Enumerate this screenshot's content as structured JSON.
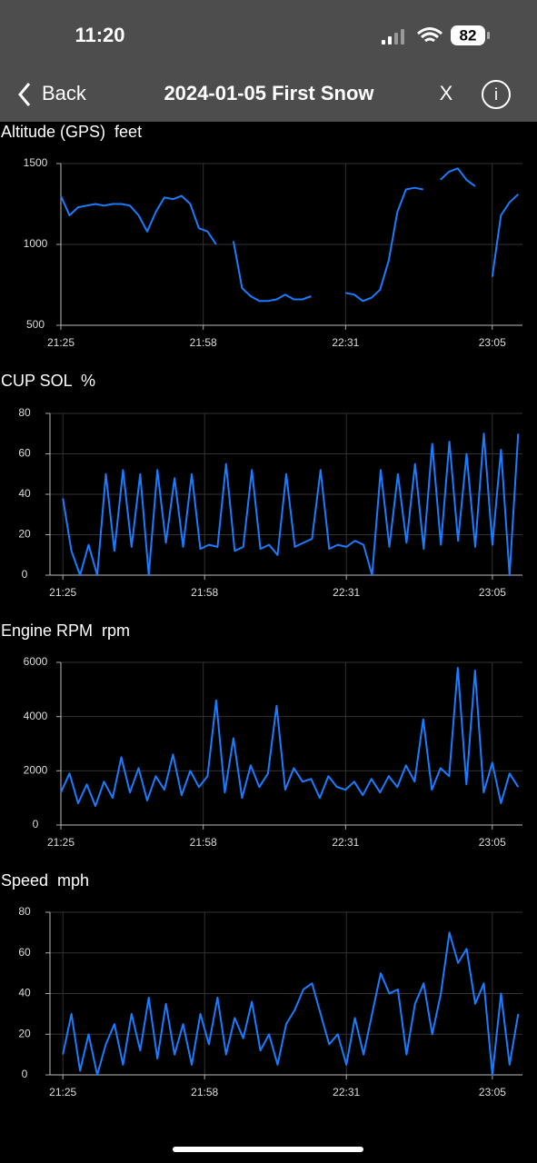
{
  "status_bar": {
    "time": "11:20",
    "battery": "82"
  },
  "nav": {
    "back": "Back",
    "title": "2024-01-05 First Snow",
    "close": "X"
  },
  "chart_data": [
    {
      "type": "line",
      "title": "Altitude (GPS)  feet",
      "color": "#1a7cff",
      "grid": true,
      "x": [
        "21:25",
        "21:27",
        "21:29",
        "21:31",
        "21:33",
        "21:35",
        "21:37",
        "21:39",
        "21:41",
        "21:43",
        "21:45",
        "21:47",
        "21:49",
        "21:51",
        "21:53",
        "21:55",
        "21:57",
        "21:59",
        "22:01",
        "22:03",
        "22:05",
        "22:07",
        "22:09",
        "22:11",
        "22:13",
        "22:15",
        "22:17",
        "22:19",
        "22:21",
        "22:23",
        "22:25",
        "22:27",
        "22:29",
        "22:31",
        "22:33",
        "22:35",
        "22:37",
        "22:39",
        "22:41",
        "22:43",
        "22:45",
        "22:47",
        "22:49",
        "22:51",
        "22:53",
        "22:55",
        "22:57",
        "22:59",
        "23:01",
        "23:03",
        "23:05",
        "23:07",
        "23:09",
        "23:11"
      ],
      "values": [
        1300,
        1180,
        1230,
        1240,
        1250,
        1240,
        1250,
        1250,
        1240,
        1180,
        1080,
        1200,
        1290,
        1280,
        1300,
        1250,
        1100,
        1080,
        1000,
        null,
        1020,
        730,
        680,
        650,
        650,
        660,
        690,
        660,
        660,
        680,
        null,
        null,
        null,
        700,
        690,
        650,
        670,
        720,
        900,
        1200,
        1340,
        1350,
        1340,
        null,
        1400,
        1450,
        1470,
        1400,
        1360,
        null,
        800,
        1180,
        1260,
        1310
      ],
      "xlim": [
        "21:25",
        "23:12"
      ],
      "xticks": [
        "21:25",
        "21:58",
        "22:31",
        "23:05"
      ],
      "ylim": [
        500,
        1500
      ],
      "yticks": [
        500,
        1000,
        1500
      ]
    },
    {
      "type": "line",
      "title": "CUP SOL  %",
      "color": "#1a7cff",
      "grid": true,
      "x": [
        "21:25",
        "21:27",
        "21:29",
        "21:31",
        "21:33",
        "21:35",
        "21:37",
        "21:39",
        "21:41",
        "21:43",
        "21:45",
        "21:47",
        "21:49",
        "21:51",
        "21:53",
        "21:55",
        "21:57",
        "21:59",
        "22:01",
        "22:03",
        "22:05",
        "22:07",
        "22:09",
        "22:11",
        "22:13",
        "22:15",
        "22:17",
        "22:19",
        "22:21",
        "22:23",
        "22:25",
        "22:27",
        "22:29",
        "22:31",
        "22:33",
        "22:35",
        "22:37",
        "22:39",
        "22:41",
        "22:43",
        "22:45",
        "22:47",
        "22:49",
        "22:51",
        "22:53",
        "22:55",
        "22:57",
        "22:59",
        "23:01",
        "23:03",
        "23:05",
        "23:07",
        "23:09",
        "23:11"
      ],
      "values": [
        38,
        12,
        0,
        15,
        0,
        50,
        12,
        52,
        14,
        50,
        0,
        52,
        16,
        48,
        14,
        50,
        13,
        15,
        14,
        55,
        12,
        14,
        52,
        13,
        15,
        10,
        50,
        14,
        16,
        18,
        52,
        13,
        15,
        14,
        17,
        15,
        0,
        52,
        14,
        50,
        16,
        55,
        13,
        65,
        15,
        66,
        17,
        60,
        14,
        70,
        15,
        62,
        0,
        70
      ],
      "xlim": [
        "21:22",
        "23:12"
      ],
      "xticks": [
        "21:25",
        "21:58",
        "22:31",
        "23:05"
      ],
      "ylim": [
        0,
        80
      ],
      "yticks": [
        0,
        20,
        40,
        60,
        80
      ]
    },
    {
      "type": "line",
      "title": "Engine RPM  rpm",
      "color": "#1a7cff",
      "grid": true,
      "x": [
        "21:25",
        "21:27",
        "21:29",
        "21:31",
        "21:33",
        "21:35",
        "21:37",
        "21:39",
        "21:41",
        "21:43",
        "21:45",
        "21:47",
        "21:49",
        "21:51",
        "21:53",
        "21:55",
        "21:57",
        "21:59",
        "22:01",
        "22:03",
        "22:05",
        "22:07",
        "22:09",
        "22:11",
        "22:13",
        "22:15",
        "22:17",
        "22:19",
        "22:21",
        "22:23",
        "22:25",
        "22:27",
        "22:29",
        "22:31",
        "22:33",
        "22:35",
        "22:37",
        "22:39",
        "22:41",
        "22:43",
        "22:45",
        "22:47",
        "22:49",
        "22:51",
        "22:53",
        "22:55",
        "22:57",
        "22:59",
        "23:01",
        "23:03",
        "23:05",
        "23:07",
        "23:09",
        "23:11"
      ],
      "values": [
        1200,
        1900,
        800,
        1500,
        700,
        1600,
        1000,
        2500,
        1200,
        2100,
        900,
        1800,
        1300,
        2600,
        1100,
        2000,
        1400,
        1800,
        4600,
        1200,
        3200,
        1000,
        2200,
        1400,
        1900,
        4400,
        1300,
        2100,
        1600,
        1700,
        1000,
        1800,
        1400,
        1300,
        1600,
        1100,
        1700,
        1200,
        1800,
        1400,
        2200,
        1600,
        3900,
        1300,
        2100,
        1800,
        5800,
        1500,
        5700,
        1200,
        2300,
        800,
        1900,
        1400
      ],
      "xlim": [
        "21:25",
        "23:12"
      ],
      "xticks": [
        "21:25",
        "21:58",
        "22:31",
        "23:05"
      ],
      "ylim": [
        0,
        6000
      ],
      "yticks": [
        0,
        2000,
        4000,
        6000
      ]
    },
    {
      "type": "line",
      "title": "Speed  mph",
      "color": "#1a7cff",
      "grid": true,
      "x": [
        "21:25",
        "21:27",
        "21:29",
        "21:31",
        "21:33",
        "21:35",
        "21:37",
        "21:39",
        "21:41",
        "21:43",
        "21:45",
        "21:47",
        "21:49",
        "21:51",
        "21:53",
        "21:55",
        "21:57",
        "21:59",
        "22:01",
        "22:03",
        "22:05",
        "22:07",
        "22:09",
        "22:11",
        "22:13",
        "22:15",
        "22:17",
        "22:19",
        "22:21",
        "22:23",
        "22:25",
        "22:27",
        "22:29",
        "22:31",
        "22:33",
        "22:35",
        "22:37",
        "22:39",
        "22:41",
        "22:43",
        "22:45",
        "22:47",
        "22:49",
        "22:51",
        "22:53",
        "22:55",
        "22:57",
        "22:59",
        "23:01",
        "23:03",
        "23:05",
        "23:07",
        "23:09",
        "23:11"
      ],
      "values": [
        10,
        30,
        2,
        20,
        0,
        15,
        25,
        5,
        30,
        12,
        38,
        8,
        35,
        10,
        25,
        5,
        30,
        15,
        38,
        10,
        28,
        18,
        36,
        12,
        20,
        5,
        25,
        32,
        42,
        45,
        30,
        15,
        20,
        5,
        28,
        10,
        30,
        50,
        40,
        42,
        10,
        35,
        45,
        20,
        40,
        70,
        55,
        62,
        35,
        45,
        0,
        40,
        5,
        30
      ],
      "xlim": [
        "21:22",
        "23:12"
      ],
      "xticks": [
        "21:25",
        "21:58",
        "22:31",
        "23:05"
      ],
      "ylim": [
        0,
        80
      ],
      "yticks": [
        0,
        20,
        40,
        60,
        80
      ]
    }
  ]
}
